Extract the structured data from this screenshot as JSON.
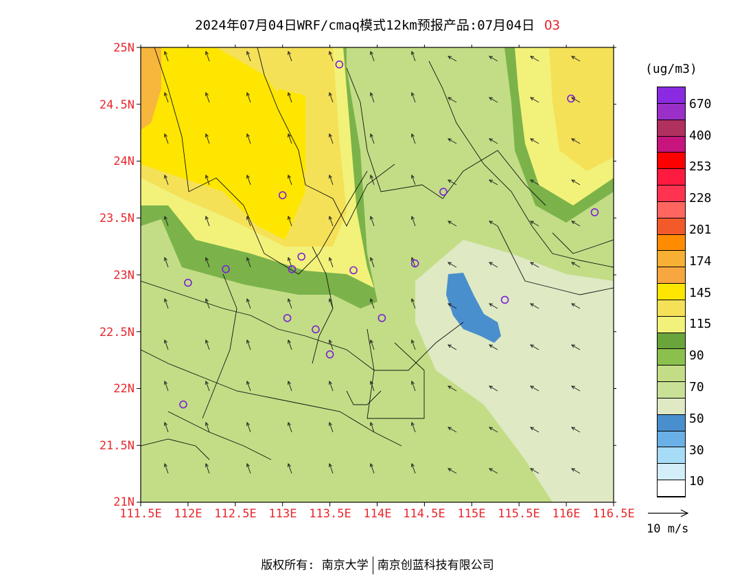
{
  "header": {
    "title": "2024年07月04日WRF/cmaq模式12km预报产品:07月04日",
    "species": "O3"
  },
  "map": {
    "y_labels": [
      "25N",
      "24.5N",
      "24N",
      "23.5N",
      "23N",
      "22.5N",
      "22N",
      "21.5N",
      "21N"
    ],
    "x_labels": [
      "111.5E",
      "112E",
      "112.5E",
      "113E",
      "113.5E",
      "114E",
      "114.5E",
      "115E",
      "115.5E",
      "116E",
      "116.5E"
    ],
    "lon_range": [
      111.5,
      116.5
    ],
    "lat_range": [
      21,
      25
    ],
    "colors": {
      "c50": "#dfe9c4",
      "c70": "#c3dd86",
      "c90": "#7bb34a",
      "c115": "#f2f27a",
      "c130": "#f5e158",
      "c145": "#ffe600",
      "c160": "#f7b63c",
      "c30": "#4a8fcd"
    },
    "stations": [
      {
        "lon": 113.6,
        "lat": 24.85
      },
      {
        "lon": 113.0,
        "lat": 23.7
      },
      {
        "lon": 114.7,
        "lat": 23.73
      },
      {
        "lon": 116.3,
        "lat": 23.55
      },
      {
        "lon": 113.2,
        "lat": 23.16
      },
      {
        "lon": 112.4,
        "lat": 23.05
      },
      {
        "lon": 113.1,
        "lat": 23.05
      },
      {
        "lon": 113.75,
        "lat": 23.04
      },
      {
        "lon": 114.4,
        "lat": 23.1
      },
      {
        "lon": 112.0,
        "lat": 22.93
      },
      {
        "lon": 113.05,
        "lat": 22.62
      },
      {
        "lon": 113.35,
        "lat": 22.52
      },
      {
        "lon": 114.05,
        "lat": 22.62
      },
      {
        "lon": 115.35,
        "lat": 22.78
      },
      {
        "lon": 113.5,
        "lat": 22.3
      },
      {
        "lon": 111.95,
        "lat": 21.86
      },
      {
        "lon": 116.05,
        "lat": 24.55
      }
    ]
  },
  "legend": {
    "unit": "(ug/m3)",
    "colors": [
      "#8a2be2",
      "#9b30c8",
      "#b03060",
      "#c8157e",
      "#ff0000",
      "#ff1a40",
      "#ff3350",
      "#ff6660",
      "#f25a2a",
      "#ff8c00",
      "#f7b033",
      "#f7a640",
      "#ffe600",
      "#f5e158",
      "#f2f27a",
      "#6aa53b",
      "#8cc04e",
      "#c3dd86",
      "#c9e196",
      "#dfe9c4",
      "#4a8fcd",
      "#6ab0e6",
      "#a6dcf5",
      "#d4eef9",
      "#ffffff"
    ],
    "labels": [
      "670",
      "400",
      "253",
      "228",
      "201",
      "174",
      "145",
      "115",
      "90",
      "70",
      "50",
      "30",
      "10"
    ]
  },
  "wind_reference": {
    "label": "10 m/s"
  },
  "footer": {
    "copyright_left": "版权所有: 南京大学",
    "copyright_right": "南京创蓝科技有限公司"
  }
}
